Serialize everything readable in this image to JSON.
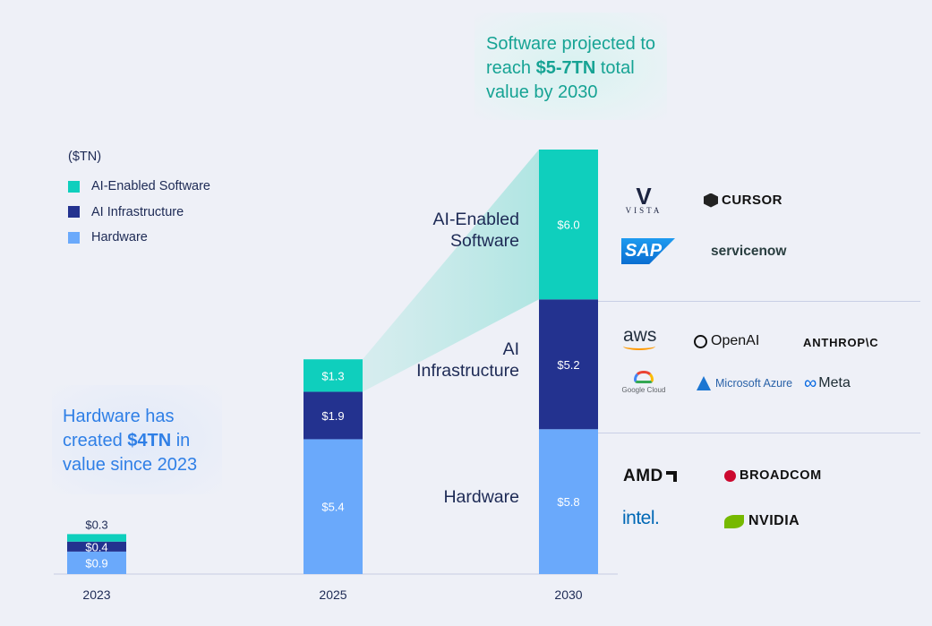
{
  "chart_data": {
    "type": "bar",
    "stacked": true,
    "unit_label": "($TN)",
    "categories": [
      "2023",
      "2025",
      "2030"
    ],
    "series": [
      {
        "name": "Hardware",
        "values": [
          0.9,
          5.4,
          5.8
        ],
        "labels": [
          "$0.9",
          "$5.4",
          "$5.8"
        ],
        "color": "#6aa9fb"
      },
      {
        "name": "AI Infrastructure",
        "values": [
          0.4,
          1.9,
          5.2
        ],
        "labels": [
          "$0.4",
          "$1.9",
          "$5.2"
        ],
        "color": "#23328f"
      },
      {
        "name": "AI-Enabled Software",
        "values": [
          0.3,
          1.3,
          6.0
        ],
        "labels": [
          "$0.3",
          "$1.3",
          "$6.0"
        ],
        "color": "#0fcfbd"
      }
    ],
    "legend": [
      "AI-Enabled Software",
      "AI Infrastructure",
      "Hardware"
    ]
  },
  "callouts": {
    "software": {
      "pre": "Software projected to reach ",
      "bold": "$5-7TN",
      "post": " total value by 2030"
    },
    "hardware": {
      "pre": "Hardware has created ",
      "bold": "$4TN",
      "post": " in value since 2023"
    }
  },
  "segment_labels": {
    "software": [
      "AI-Enabled",
      "Software"
    ],
    "infra": [
      "AI",
      "Infrastructure"
    ],
    "hardware": [
      "Hardware"
    ]
  },
  "logos": {
    "software": [
      "VISTA",
      "CURSOR",
      "SAP",
      "servicenow"
    ],
    "infra": [
      "aws",
      "OpenAI",
      "ANTHROP\\C",
      "Google Cloud",
      "Microsoft Azure",
      "Meta"
    ],
    "hardware": [
      "AMD",
      "BROADCOM",
      "intel.",
      "NVIDIA"
    ]
  },
  "colors": {
    "software": "#0fcfbd",
    "infra": "#23328f",
    "hardware": "#6aa9fb",
    "text_dark": "#1d2a55",
    "teal_text": "#16a394",
    "blue_text": "#2f7fe6"
  }
}
